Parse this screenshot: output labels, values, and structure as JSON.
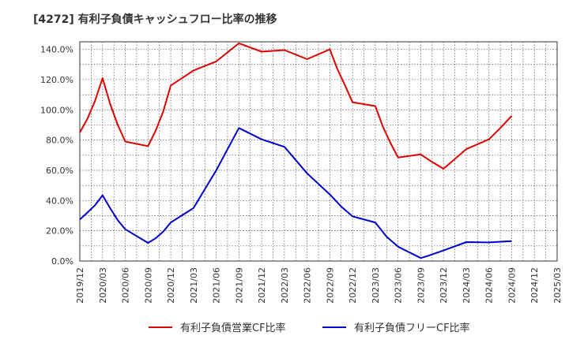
{
  "chart_data": {
    "type": "line",
    "title": "[4272]  有利子負債キャッシュフロー比率の推移",
    "xlabel": "",
    "ylabel": "",
    "ylim": [
      0,
      145
    ],
    "y_ticks": [
      "0.0%",
      "20.0%",
      "40.0%",
      "60.0%",
      "80.0%",
      "100.0%",
      "120.0%",
      "140.0%"
    ],
    "x_ticks": [
      "2019/12",
      "2020/03",
      "2020/06",
      "2020/09",
      "2020/12",
      "2021/03",
      "2021/06",
      "2021/09",
      "2021/12",
      "2022/03",
      "2022/06",
      "2022/09",
      "2022/12",
      "2023/03",
      "2023/06",
      "2023/09",
      "2023/12",
      "2024/03",
      "2024/06",
      "2024/09",
      "2024/12",
      "2025/03"
    ],
    "grid": true,
    "legend_position": "bottom",
    "series": [
      {
        "name": "有利子負債営業CF比率",
        "color": "#dd0000",
        "points": [
          {
            "x": 0,
            "y": 85
          },
          {
            "x": 0.33,
            "y": 94
          },
          {
            "x": 0.67,
            "y": 106
          },
          {
            "x": 1,
            "y": 121
          },
          {
            "x": 1.33,
            "y": 104
          },
          {
            "x": 1.67,
            "y": 90
          },
          {
            "x": 2,
            "y": 79
          },
          {
            "x": 3,
            "y": 76
          },
          {
            "x": 3.33,
            "y": 86
          },
          {
            "x": 3.67,
            "y": 99
          },
          {
            "x": 4,
            "y": 116
          },
          {
            "x": 5,
            "y": 126
          },
          {
            "x": 6,
            "y": 132
          },
          {
            "x": 7,
            "y": 144
          },
          {
            "x": 8,
            "y": 138.5
          },
          {
            "x": 9,
            "y": 139.5
          },
          {
            "x": 10,
            "y": 133.5
          },
          {
            "x": 11,
            "y": 140
          },
          {
            "x": 11.33,
            "y": 127
          },
          {
            "x": 11.67,
            "y": 116
          },
          {
            "x": 12,
            "y": 105
          },
          {
            "x": 13,
            "y": 102.5
          },
          {
            "x": 13.33,
            "y": 89
          },
          {
            "x": 13.67,
            "y": 78
          },
          {
            "x": 14,
            "y": 68.5
          },
          {
            "x": 15,
            "y": 70.5
          },
          {
            "x": 15.5,
            "y": 65.5
          },
          {
            "x": 16,
            "y": 61
          },
          {
            "x": 17,
            "y": 74
          },
          {
            "x": 18,
            "y": 80.5
          },
          {
            "x": 18.5,
            "y": 88
          },
          {
            "x": 19,
            "y": 96
          }
        ]
      },
      {
        "name": "有利子負債フリーCF比率",
        "color": "#0000cc",
        "points": [
          {
            "x": 0,
            "y": 27.5
          },
          {
            "x": 0.33,
            "y": 32
          },
          {
            "x": 0.67,
            "y": 37
          },
          {
            "x": 1,
            "y": 43.5
          },
          {
            "x": 1.33,
            "y": 35
          },
          {
            "x": 1.67,
            "y": 27
          },
          {
            "x": 2,
            "y": 21
          },
          {
            "x": 3,
            "y": 12
          },
          {
            "x": 3.33,
            "y": 15
          },
          {
            "x": 3.67,
            "y": 19.5
          },
          {
            "x": 4,
            "y": 25.5
          },
          {
            "x": 5,
            "y": 35
          },
          {
            "x": 6,
            "y": 60
          },
          {
            "x": 7,
            "y": 88
          },
          {
            "x": 8,
            "y": 80.5
          },
          {
            "x": 9,
            "y": 75.5
          },
          {
            "x": 10,
            "y": 58
          },
          {
            "x": 11,
            "y": 44
          },
          {
            "x": 11.5,
            "y": 36
          },
          {
            "x": 12,
            "y": 29.5
          },
          {
            "x": 13,
            "y": 25.5
          },
          {
            "x": 13.5,
            "y": 16
          },
          {
            "x": 14,
            "y": 9.5
          },
          {
            "x": 15,
            "y": 2
          },
          {
            "x": 15.33,
            "y": 3.5
          },
          {
            "x": 16,
            "y": 7
          },
          {
            "x": 17,
            "y": 12.5
          },
          {
            "x": 18,
            "y": 12.3
          },
          {
            "x": 19,
            "y": 13.2
          }
        ]
      }
    ]
  }
}
